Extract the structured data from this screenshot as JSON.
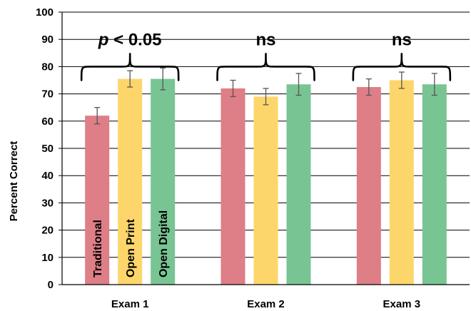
{
  "chart_data": {
    "type": "bar",
    "categories": [
      "Exam 1",
      "Exam 2",
      "Exam 3"
    ],
    "series": [
      {
        "name": "Traditional",
        "color": "#DE7E86",
        "values": [
          62,
          72,
          72.5
        ],
        "errors": [
          3,
          3,
          3
        ]
      },
      {
        "name": "Open Print",
        "color": "#FDD66B",
        "values": [
          75.5,
          69,
          75
        ],
        "errors": [
          3,
          3,
          3
        ]
      },
      {
        "name": "Open Digital",
        "color": "#79C493",
        "values": [
          75.5,
          73.5,
          73.5
        ],
        "errors": [
          4,
          4,
          4
        ]
      }
    ],
    "ylabel": "Percent Correct",
    "xlabel": "",
    "ylim": [
      0,
      100
    ],
    "yticks": [
      0,
      10,
      20,
      30,
      40,
      50,
      60,
      70,
      80,
      90,
      100
    ],
    "grid": true,
    "annotations": [
      {
        "group": 0,
        "italic": "p",
        "text": " < 0.05"
      },
      {
        "group": 1,
        "italic": "",
        "text": "ns"
      },
      {
        "group": 2,
        "italic": "",
        "text": "ns"
      }
    ]
  }
}
